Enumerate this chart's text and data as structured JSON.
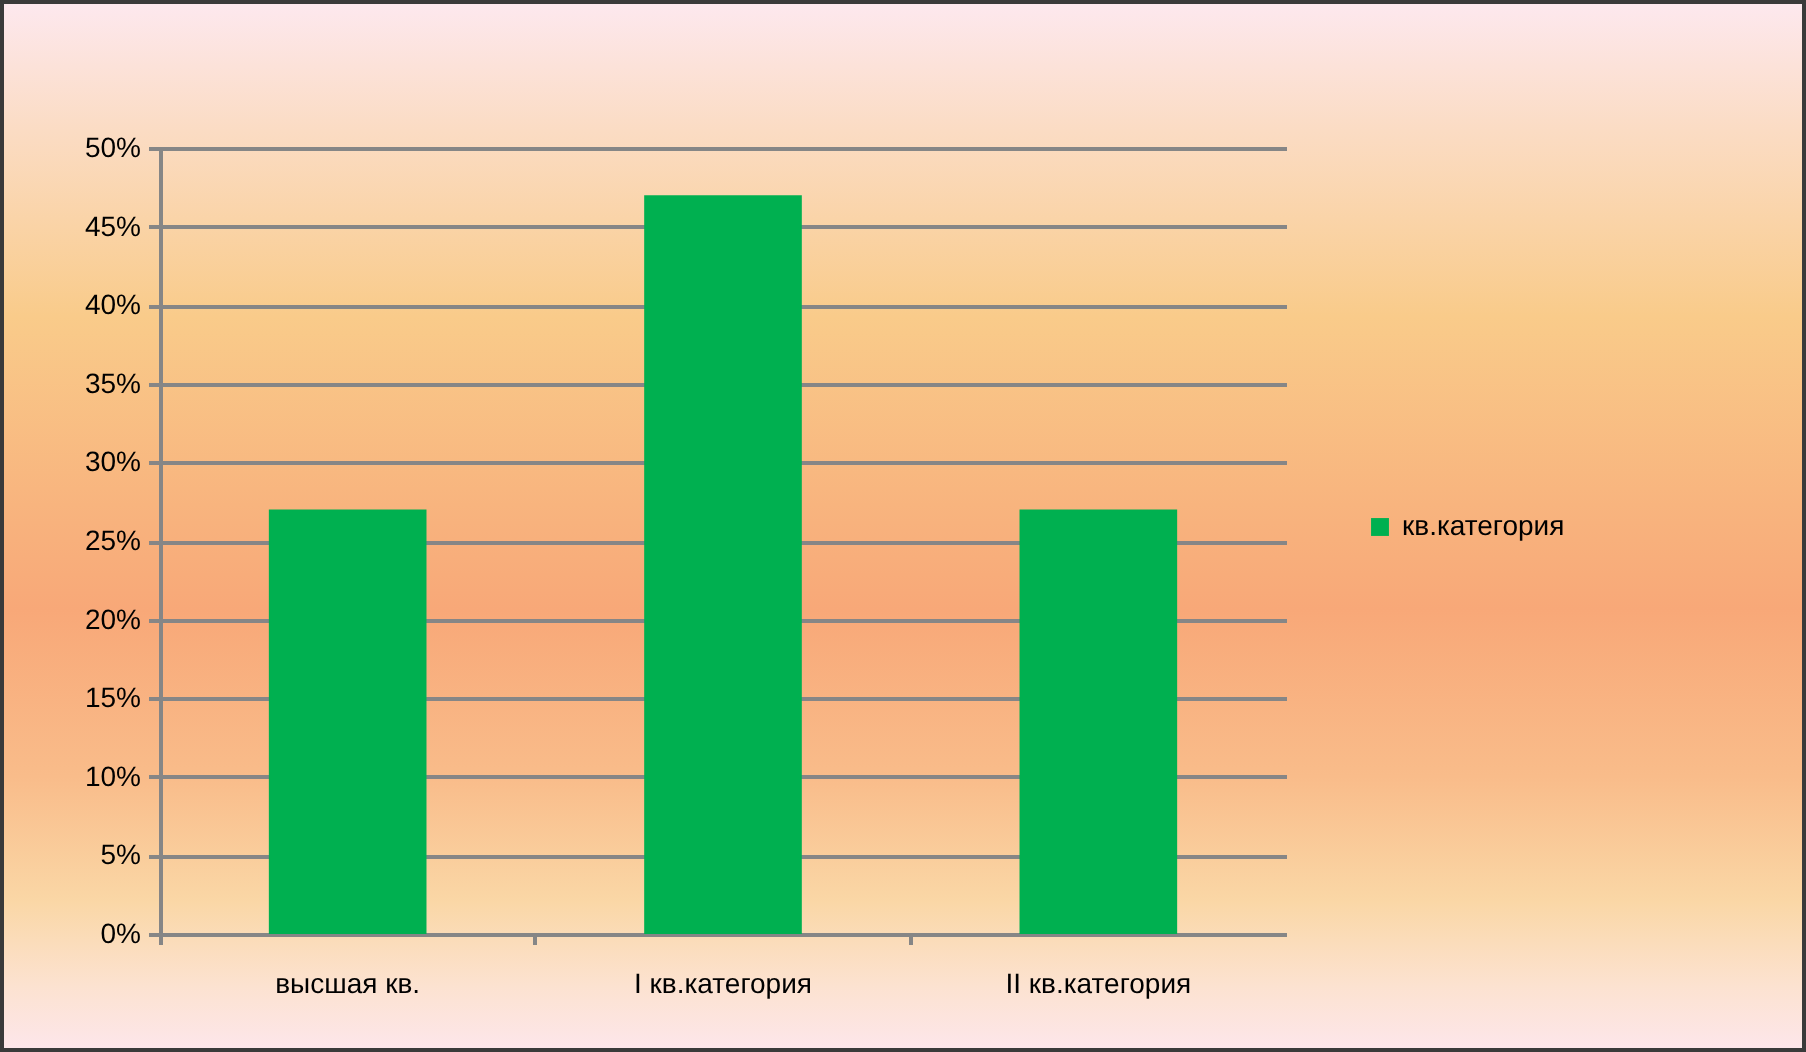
{
  "chart_data": {
    "type": "bar",
    "categories": [
      "высшая кв.",
      "I кв.категория",
      "II кв.категория"
    ],
    "series": [
      {
        "name": "кв.категория",
        "color": "#00b050",
        "values": [
          27,
          47,
          27
        ]
      }
    ],
    "ylim": [
      0,
      50
    ],
    "yticks": [
      {
        "value": 0,
        "label": "0%"
      },
      {
        "value": 5,
        "label": "5%"
      },
      {
        "value": 10,
        "label": "10%"
      },
      {
        "value": 15,
        "label": "15%"
      },
      {
        "value": 20,
        "label": "20%"
      },
      {
        "value": 25,
        "label": "25%"
      },
      {
        "value": 30,
        "label": "30%"
      },
      {
        "value": 35,
        "label": "35%"
      },
      {
        "value": 40,
        "label": "40%"
      },
      {
        "value": 45,
        "label": "45%"
      },
      {
        "value": 50,
        "label": "50%"
      }
    ],
    "grid": "y",
    "legend": "right"
  }
}
